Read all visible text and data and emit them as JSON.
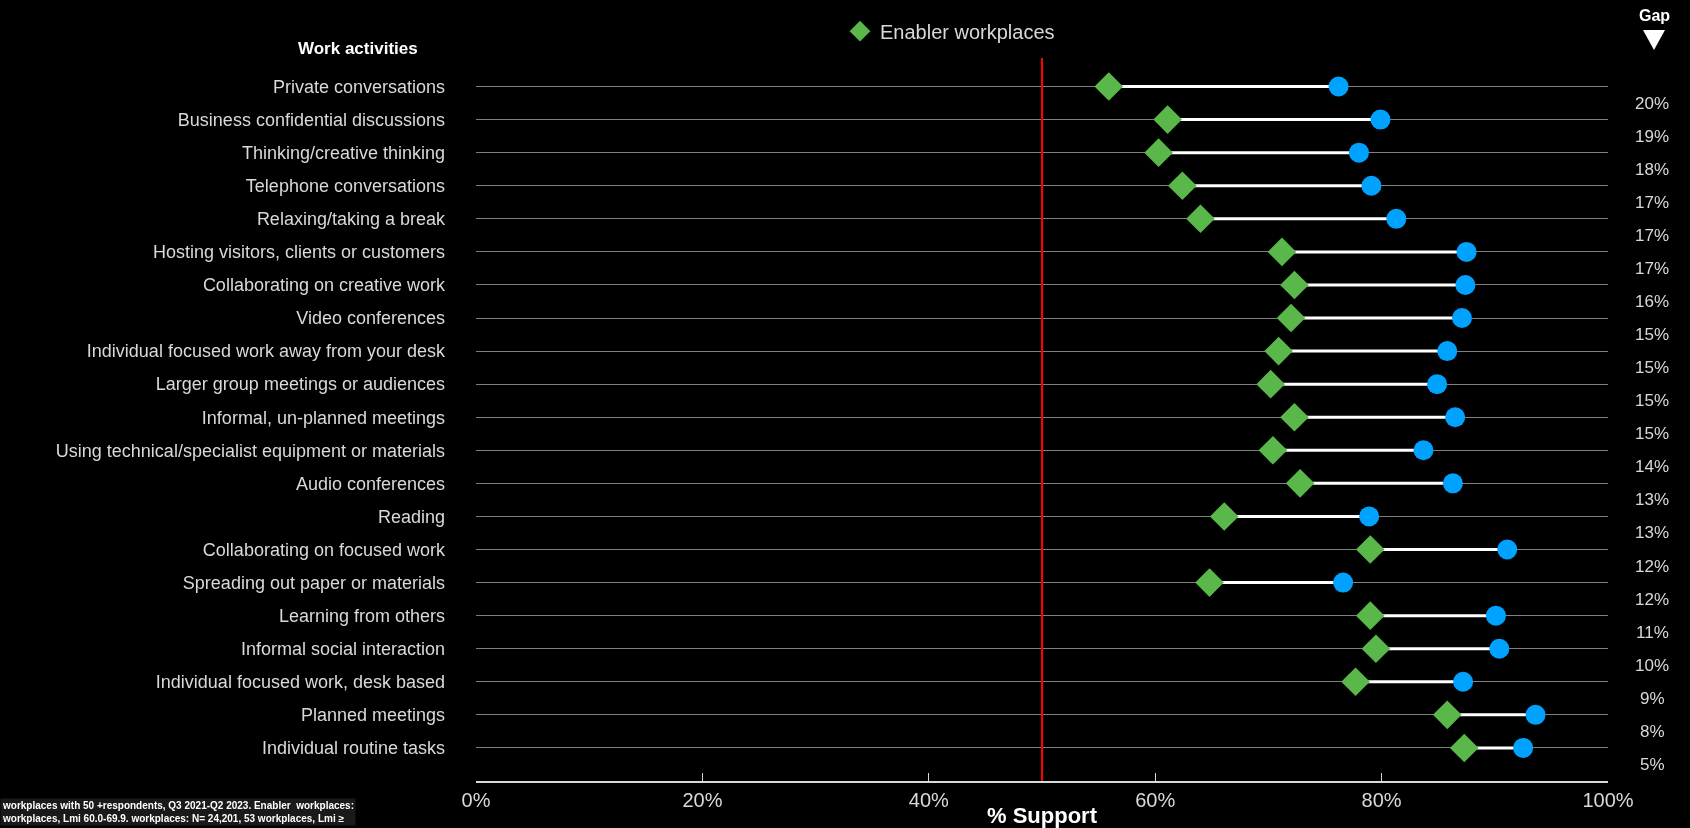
{
  "chart_data": {
    "type": "scatter",
    "ylabel": "Work activities",
    "xlabel": "% Support",
    "y2label": "Gap",
    "categories": [
      "Private conversations",
      "Business confidential discussions",
      "Thinking/creative thinking",
      "Telephone conversations",
      "Relaxing/taking a break",
      "Hosting visitors, clients or customers",
      "Collaborating on creative work",
      "Video conferences",
      "Individual focused work away from your desk",
      "Larger group meetings or audiences",
      "Informal, un-planned meetings",
      "Using technical/specialist equipment or materials",
      "Audio conferences",
      "Reading",
      "Collaborating on focused work",
      "Spreading out paper or materials",
      "Learning from others",
      "Informal social interaction",
      "Individual focused work, desk based",
      "Planned meetings",
      "Individual routine tasks"
    ],
    "orientation": "horizontal",
    "series": [
      {
        "name": "Enabler workplaces",
        "color": "#5ab74a",
        "marker": "diamond",
        "values": [
          55.9,
          61.1,
          60.3,
          62.4,
          64.0,
          71.2,
          72.3,
          72.0,
          70.9,
          70.2,
          72.3,
          70.4,
          72.8,
          66.1,
          79.0,
          64.8,
          79.0,
          79.5,
          77.7,
          85.8,
          87.3
        ]
      },
      {
        "color": "#00a2ff",
        "marker": "circle",
        "values": [
          76.2,
          79.9,
          78.0,
          79.1,
          81.3,
          87.5,
          87.4,
          87.1,
          85.8,
          84.9,
          86.5,
          83.7,
          86.3,
          78.9,
          91.1,
          76.6,
          90.1,
          90.4,
          87.2,
          93.6,
          92.5
        ]
      }
    ],
    "xlim": [
      0,
      100
    ],
    "xticks": [
      {
        "value": 0,
        "label": "0%"
      },
      {
        "value": 20,
        "label": "20%"
      },
      {
        "value": 40,
        "label": "40%"
      },
      {
        "value": 60,
        "label": "60%"
      },
      {
        "value": 80,
        "label": "80%"
      },
      {
        "value": 100,
        "label": "100%"
      }
    ],
    "ref_lines": [
      {
        "axis": "x",
        "value": 50,
        "color": "#ff0000"
      }
    ],
    "grid": "y",
    "legend": "top",
    "annotations": [
      "workplaces with 50 +respondents, Q3 2021-Q2 2023. Enabler  workplaces:\nworkplaces, Lmi 60.0-69.9. workplaces: N= 24,201, 53 workplaces, Lmi ≥",
      "20%",
      "19%",
      "18%",
      "17%",
      "17%",
      "17%",
      "16%",
      "15%",
      "15%",
      "15%",
      "15%",
      "14%",
      "13%",
      "13%",
      "12%",
      "12%",
      "11%",
      "10%",
      "9%",
      "8%",
      "5%"
    ]
  }
}
